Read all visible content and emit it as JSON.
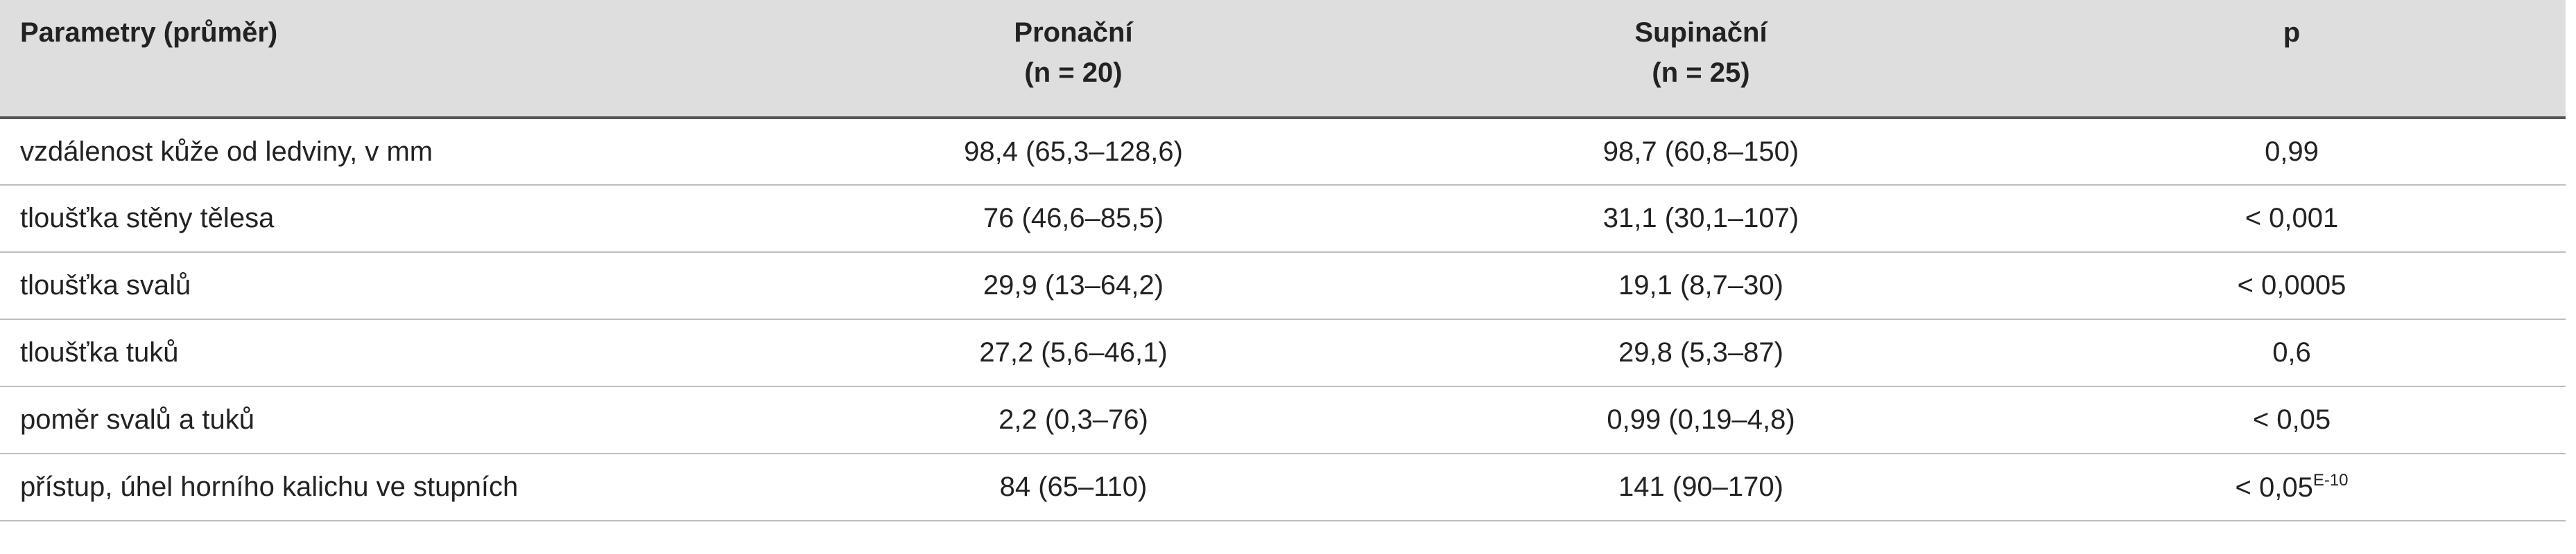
{
  "table": {
    "header": {
      "parameter": "Parametry (průměr)",
      "pronacni": "Pronační",
      "pronacni_n": "(n = 20)",
      "supinacni": "Supinační",
      "supinacni_n": "(n = 25)",
      "p": "p"
    },
    "rows": [
      {
        "parameter": "vzdálenost kůže od ledviny, v mm",
        "pronacni": "98,4 (65,3–128,6)",
        "supinacni": "98,7 (60,8–150)",
        "p": "0,99"
      },
      {
        "parameter": "tloušťka stěny tělesa",
        "pronacni": "76 (46,6–85,5)",
        "supinacni": "31,1 (30,1–107)",
        "p": "< 0,001"
      },
      {
        "parameter": "tloušťka svalů",
        "pronacni": "29,9 (13–64,2)",
        "supinacni": "19,1 (8,7–30)",
        "p": "< 0,0005"
      },
      {
        "parameter": "tloušťka tuků",
        "pronacni": "27,2 (5,6–46,1)",
        "supinacni": "29,8 (5,3–87)",
        "p": "0,6"
      },
      {
        "parameter": "poměr svalů a tuků",
        "pronacni": "2,2 (0,3–76)",
        "supinacni": "0,99 (0,19–4,8)",
        "p": "< 0,05"
      },
      {
        "parameter": "přístup, úhel horního kalichu ve stupních",
        "pronacni": "84 (65–110)",
        "supinacni": "141 (90–170)",
        "p": "< 0,05",
        "p_sup": "E-10"
      }
    ]
  }
}
